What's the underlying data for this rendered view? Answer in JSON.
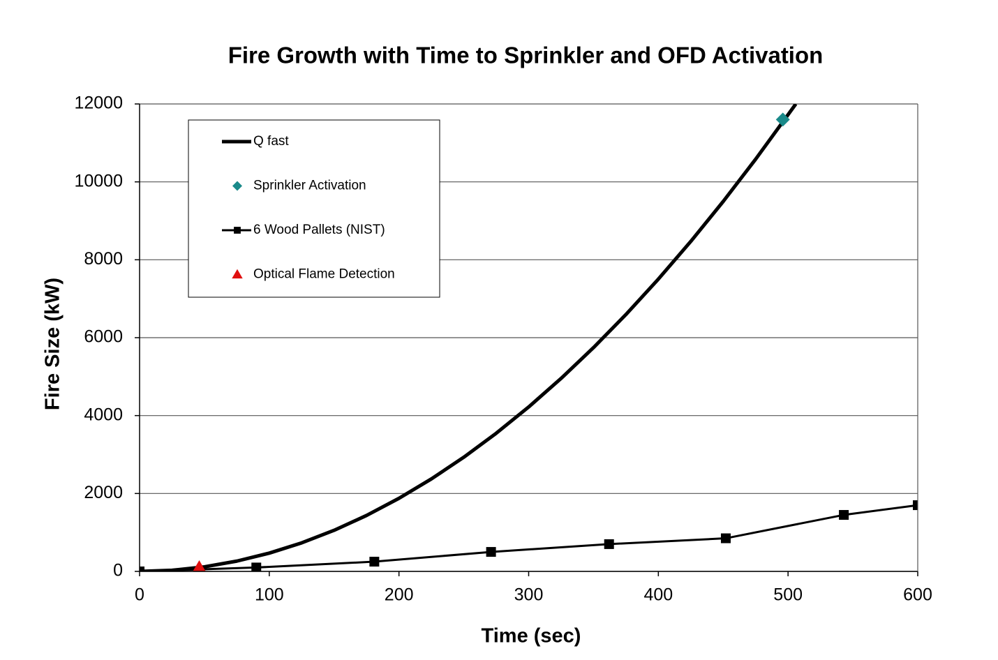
{
  "chart_data": {
    "type": "line",
    "title": "Fire Growth with Time to Sprinkler and OFD Activation",
    "x_label": "Time (sec)",
    "y_label": "Fire Size (kW)",
    "xlim": [
      0,
      600
    ],
    "xticks": [
      0,
      100,
      200,
      300,
      400,
      500,
      600
    ],
    "ylim": [
      0,
      12000
    ],
    "yticks": [
      0,
      2000,
      4000,
      6000,
      8000,
      10000,
      12000
    ],
    "grid": true,
    "legend": "upper left",
    "series": [
      {
        "name": "Q fast",
        "color": "#000000",
        "marker": "none",
        "x": [
          0,
          25,
          50,
          75,
          100,
          125,
          150,
          175,
          200,
          225,
          250,
          275,
          300,
          325,
          350,
          375,
          400,
          425,
          450,
          475,
          500,
          506
        ],
        "values": [
          0,
          29,
          117,
          264,
          469,
          733,
          1055,
          1436,
          1876,
          2374,
          2931,
          3547,
          4221,
          4954,
          5745,
          6595,
          7504,
          8471,
          9497,
          10582,
          11725,
          12000
        ]
      },
      {
        "name": "Sprinkler Activation",
        "color": "#1a8a8a",
        "marker": "diamond",
        "x": [
          496
        ],
        "values": [
          11600
        ]
      },
      {
        "name": "6 Wood Pallets (NIST)",
        "color": "#000000",
        "marker": "square",
        "x": [
          0,
          90,
          181,
          271,
          362,
          452,
          543,
          600
        ],
        "values": [
          0,
          100,
          250,
          500,
          700,
          850,
          1450,
          1700
        ]
      },
      {
        "name": "Optical Flame Detection",
        "color": "#e01010",
        "marker": "triangle",
        "x": [
          46
        ],
        "values": [
          90
        ]
      }
    ]
  }
}
